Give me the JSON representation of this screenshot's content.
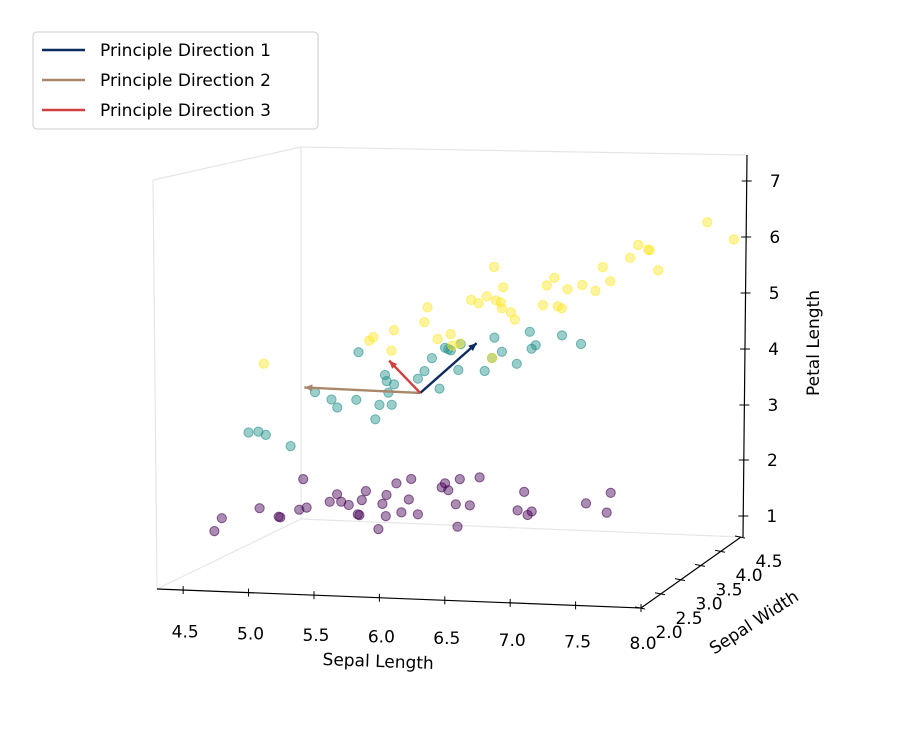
{
  "chart_data": {
    "type": "scatter",
    "title": "",
    "xlabel": "Sepal Length",
    "ylabel": "Sepal Width",
    "zlabel": "Petal Length",
    "xlim": [
      4.3,
      8.0
    ],
    "ylim": [
      2.0,
      4.5
    ],
    "zlim": [
      1.0,
      7.0
    ],
    "x_ticks": [
      "4.5",
      "5.0",
      "5.5",
      "6.0",
      "6.5",
      "7.0",
      "7.5",
      "8.0"
    ],
    "y_ticks": [
      "2.0",
      "2.5",
      "3.0",
      "3.5",
      "4.0",
      "4.5"
    ],
    "z_ticks": [
      "1",
      "2",
      "3",
      "4",
      "5",
      "6",
      "7"
    ],
    "grid": false,
    "legend_position": "top-left",
    "legend": [
      {
        "name": "Principle Direction 1",
        "color": "#0b2a5e"
      },
      {
        "name": "Principle Direction 2",
        "color": "#a9876a"
      },
      {
        "name": "Principle Direction 3",
        "color": "#d04040"
      }
    ],
    "series": [
      {
        "color": "#440154",
        "points": [
          [
            4.3,
            3.0,
            1.1
          ],
          [
            4.4,
            2.9,
            1.4
          ],
          [
            4.6,
            3.1,
            1.5
          ],
          [
            4.7,
            3.2,
            1.3
          ],
          [
            4.8,
            3.0,
            1.4
          ],
          [
            4.9,
            3.1,
            1.5
          ],
          [
            5.0,
            3.6,
            1.4
          ],
          [
            5.0,
            3.4,
            1.5
          ],
          [
            5.1,
            3.5,
            1.4
          ],
          [
            5.1,
            3.8,
            1.5
          ],
          [
            5.2,
            3.5,
            1.5
          ],
          [
            5.3,
            3.7,
            1.5
          ],
          [
            5.4,
            3.9,
            1.7
          ],
          [
            5.4,
            3.4,
            1.5
          ],
          [
            5.5,
            4.2,
            1.4
          ],
          [
            5.5,
            3.5,
            1.3
          ],
          [
            5.7,
            4.4,
            1.5
          ],
          [
            5.7,
            3.8,
            1.7
          ],
          [
            5.8,
            4.0,
            1.2
          ],
          [
            5.0,
            3.0,
            1.6
          ],
          [
            4.8,
            3.4,
            1.9
          ],
          [
            5.1,
            3.3,
            1.7
          ],
          [
            5.4,
            3.0,
            1.5
          ],
          [
            5.6,
            3.4,
            1.6
          ],
          [
            5.2,
            4.1,
            1.5
          ],
          [
            5.3,
            3.2,
            1.4
          ],
          [
            5.6,
            3.0,
            1.5
          ],
          [
            5.8,
            3.1,
            1.5
          ],
          [
            6.0,
            3.3,
            1.6
          ],
          [
            5.9,
            3.6,
            1.9
          ],
          [
            6.3,
            3.8,
            1.6
          ],
          [
            6.5,
            3.4,
            1.4
          ],
          [
            6.9,
            3.5,
            1.6
          ],
          [
            7.0,
            3.7,
            1.7
          ],
          [
            5.9,
            3.4,
            1.8
          ],
          [
            6.1,
            3.1,
            1.3
          ],
          [
            6.6,
            3.0,
            1.7
          ],
          [
            7.1,
            3.4,
            1.5
          ],
          [
            5.5,
            3.1,
            1.2
          ],
          [
            6.4,
            3.7,
            1.3
          ]
        ]
      },
      {
        "color": "#21918c",
        "points": [
          [
            4.9,
            2.4,
            3.3
          ],
          [
            5.0,
            2.0,
            3.5
          ],
          [
            5.0,
            2.3,
            3.3
          ],
          [
            5.1,
            2.5,
            3.0
          ],
          [
            5.2,
            2.7,
            3.9
          ],
          [
            5.5,
            2.3,
            4.0
          ],
          [
            5.5,
            2.4,
            3.8
          ],
          [
            5.6,
            2.9,
            3.6
          ],
          [
            5.6,
            2.5,
            3.9
          ],
          [
            5.7,
            2.8,
            4.1
          ],
          [
            5.8,
            2.7,
            4.1
          ],
          [
            5.9,
            3.0,
            4.2
          ],
          [
            6.0,
            2.2,
            4.0
          ],
          [
            6.1,
            2.8,
            4.0
          ],
          [
            6.2,
            2.2,
            4.5
          ],
          [
            6.3,
            2.5,
            4.9
          ],
          [
            6.4,
            2.9,
            4.3
          ],
          [
            6.5,
            2.8,
            4.6
          ],
          [
            6.6,
            3.0,
            4.4
          ],
          [
            6.7,
            3.1,
            4.7
          ],
          [
            6.8,
            2.8,
            4.8
          ],
          [
            6.9,
            3.1,
            4.9
          ],
          [
            7.0,
            3.2,
            4.7
          ],
          [
            5.7,
            2.6,
            3.5
          ],
          [
            5.8,
            2.6,
            4.0
          ],
          [
            6.0,
            2.9,
            4.5
          ],
          [
            6.1,
            3.0,
            4.6
          ],
          [
            6.3,
            3.3,
            4.7
          ],
          [
            6.2,
            2.9,
            4.3
          ],
          [
            6.7,
            3.0,
            5.0
          ],
          [
            6.0,
            3.4,
            4.5
          ],
          [
            5.4,
            3.0,
            4.5
          ],
          [
            5.6,
            3.0,
            4.1
          ],
          [
            6.1,
            2.9,
            4.7
          ],
          [
            6.4,
            3.2,
            4.5
          ]
        ]
      },
      {
        "color": "#fde725",
        "points": [
          [
            4.9,
            2.5,
            4.5
          ],
          [
            5.6,
            2.8,
            4.9
          ],
          [
            5.8,
            2.7,
            5.1
          ],
          [
            5.9,
            3.0,
            5.1
          ],
          [
            6.0,
            2.2,
            5.0
          ],
          [
            6.1,
            2.6,
            5.6
          ],
          [
            6.2,
            2.8,
            4.8
          ],
          [
            6.3,
            2.7,
            4.9
          ],
          [
            6.3,
            2.9,
            5.6
          ],
          [
            6.3,
            3.3,
            6.0
          ],
          [
            6.4,
            2.8,
            5.6
          ],
          [
            6.4,
            3.2,
            5.3
          ],
          [
            6.5,
            3.0,
            5.8
          ],
          [
            6.5,
            3.2,
            5.1
          ],
          [
            6.7,
            2.5,
            5.8
          ],
          [
            6.7,
            3.3,
            5.7
          ],
          [
            6.8,
            3.0,
            5.5
          ],
          [
            6.9,
            3.1,
            5.4
          ],
          [
            7.1,
            3.0,
            5.9
          ],
          [
            7.2,
            3.6,
            6.1
          ],
          [
            7.2,
            3.0,
            5.8
          ],
          [
            7.3,
            2.9,
            6.3
          ],
          [
            7.4,
            2.8,
            6.1
          ],
          [
            7.6,
            3.0,
            6.6
          ],
          [
            7.7,
            2.6,
            6.9
          ],
          [
            7.7,
            3.8,
            6.7
          ],
          [
            7.9,
            3.8,
            6.4
          ],
          [
            7.7,
            2.8,
            6.7
          ],
          [
            6.1,
            3.0,
            4.9
          ],
          [
            5.7,
            2.5,
            5.0
          ],
          [
            6.9,
            3.2,
            5.7
          ],
          [
            6.4,
            3.1,
            5.5
          ],
          [
            6.8,
            3.2,
            5.9
          ],
          [
            7.0,
            2.8,
            5.6
          ],
          [
            6.6,
            2.9,
            5.4
          ],
          [
            7.5,
            3.4,
            6.0
          ],
          [
            6.0,
            3.0,
            4.8
          ],
          [
            6.2,
            3.4,
            5.4
          ],
          [
            6.5,
            2.8,
            4.6
          ]
        ]
      }
    ],
    "principal_directions": [
      {
        "name": "Principle Direction 1",
        "from": [
          5.84,
          3.06,
          3.76
        ],
        "to": [
          6.2,
          3.22,
          4.63
        ],
        "color": "#0b2a5e"
      },
      {
        "name": "Principle Direction 2",
        "from": [
          5.84,
          3.06,
          3.76
        ],
        "to": [
          4.9,
          3.2,
          3.7
        ],
        "color": "#a9876a"
      },
      {
        "name": "Principle Direction 3",
        "from": [
          5.84,
          3.06,
          3.76
        ],
        "to": [
          5.5,
          3.3,
          4.2
        ],
        "color": "#d04040"
      }
    ]
  }
}
